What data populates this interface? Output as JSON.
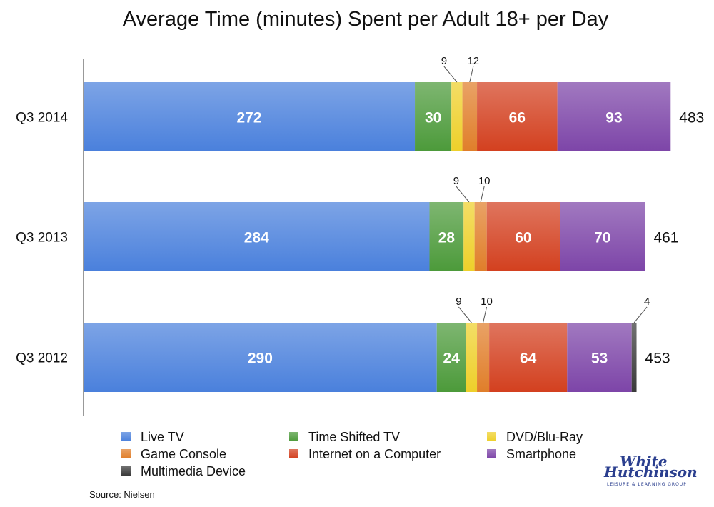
{
  "chart_data": {
    "type": "bar",
    "orientation": "horizontal",
    "stacked": true,
    "title": "Average Time (minutes) Spent per Adult 18+ per Day",
    "categories": [
      "Q3 2014",
      "Q3 2013",
      "Q3 2012"
    ],
    "series": [
      {
        "name": "Live TV",
        "color": "#4a80dc",
        "values": [
          272,
          284,
          290
        ]
      },
      {
        "name": "Time Shifted TV",
        "color": "#4c9a3a",
        "values": [
          30,
          28,
          24
        ]
      },
      {
        "name": "DVD/Blu-Ray",
        "color": "#eed02a",
        "values": [
          9,
          9,
          9
        ]
      },
      {
        "name": "Game Console",
        "color": "#e07e2a",
        "values": [
          12,
          10,
          10
        ]
      },
      {
        "name": "Internet on a Computer",
        "color": "#d3401f",
        "values": [
          66,
          60,
          64
        ]
      },
      {
        "name": "Smartphone",
        "color": "#7d45a8",
        "values": [
          93,
          70,
          53
        ]
      },
      {
        "name": "Multimedia Device",
        "color": "#3a3a3a",
        "values": [
          0,
          0,
          4
        ]
      }
    ],
    "totals": [
      483,
      461,
      453
    ],
    "xlim": [
      0,
      483
    ],
    "grid": false,
    "legend": "bottom"
  },
  "source": "Source: Nielsen",
  "logo": {
    "line1": "White",
    "line2": "Hutchinson",
    "line3": "LEISURE & LEARNING GROUP"
  }
}
